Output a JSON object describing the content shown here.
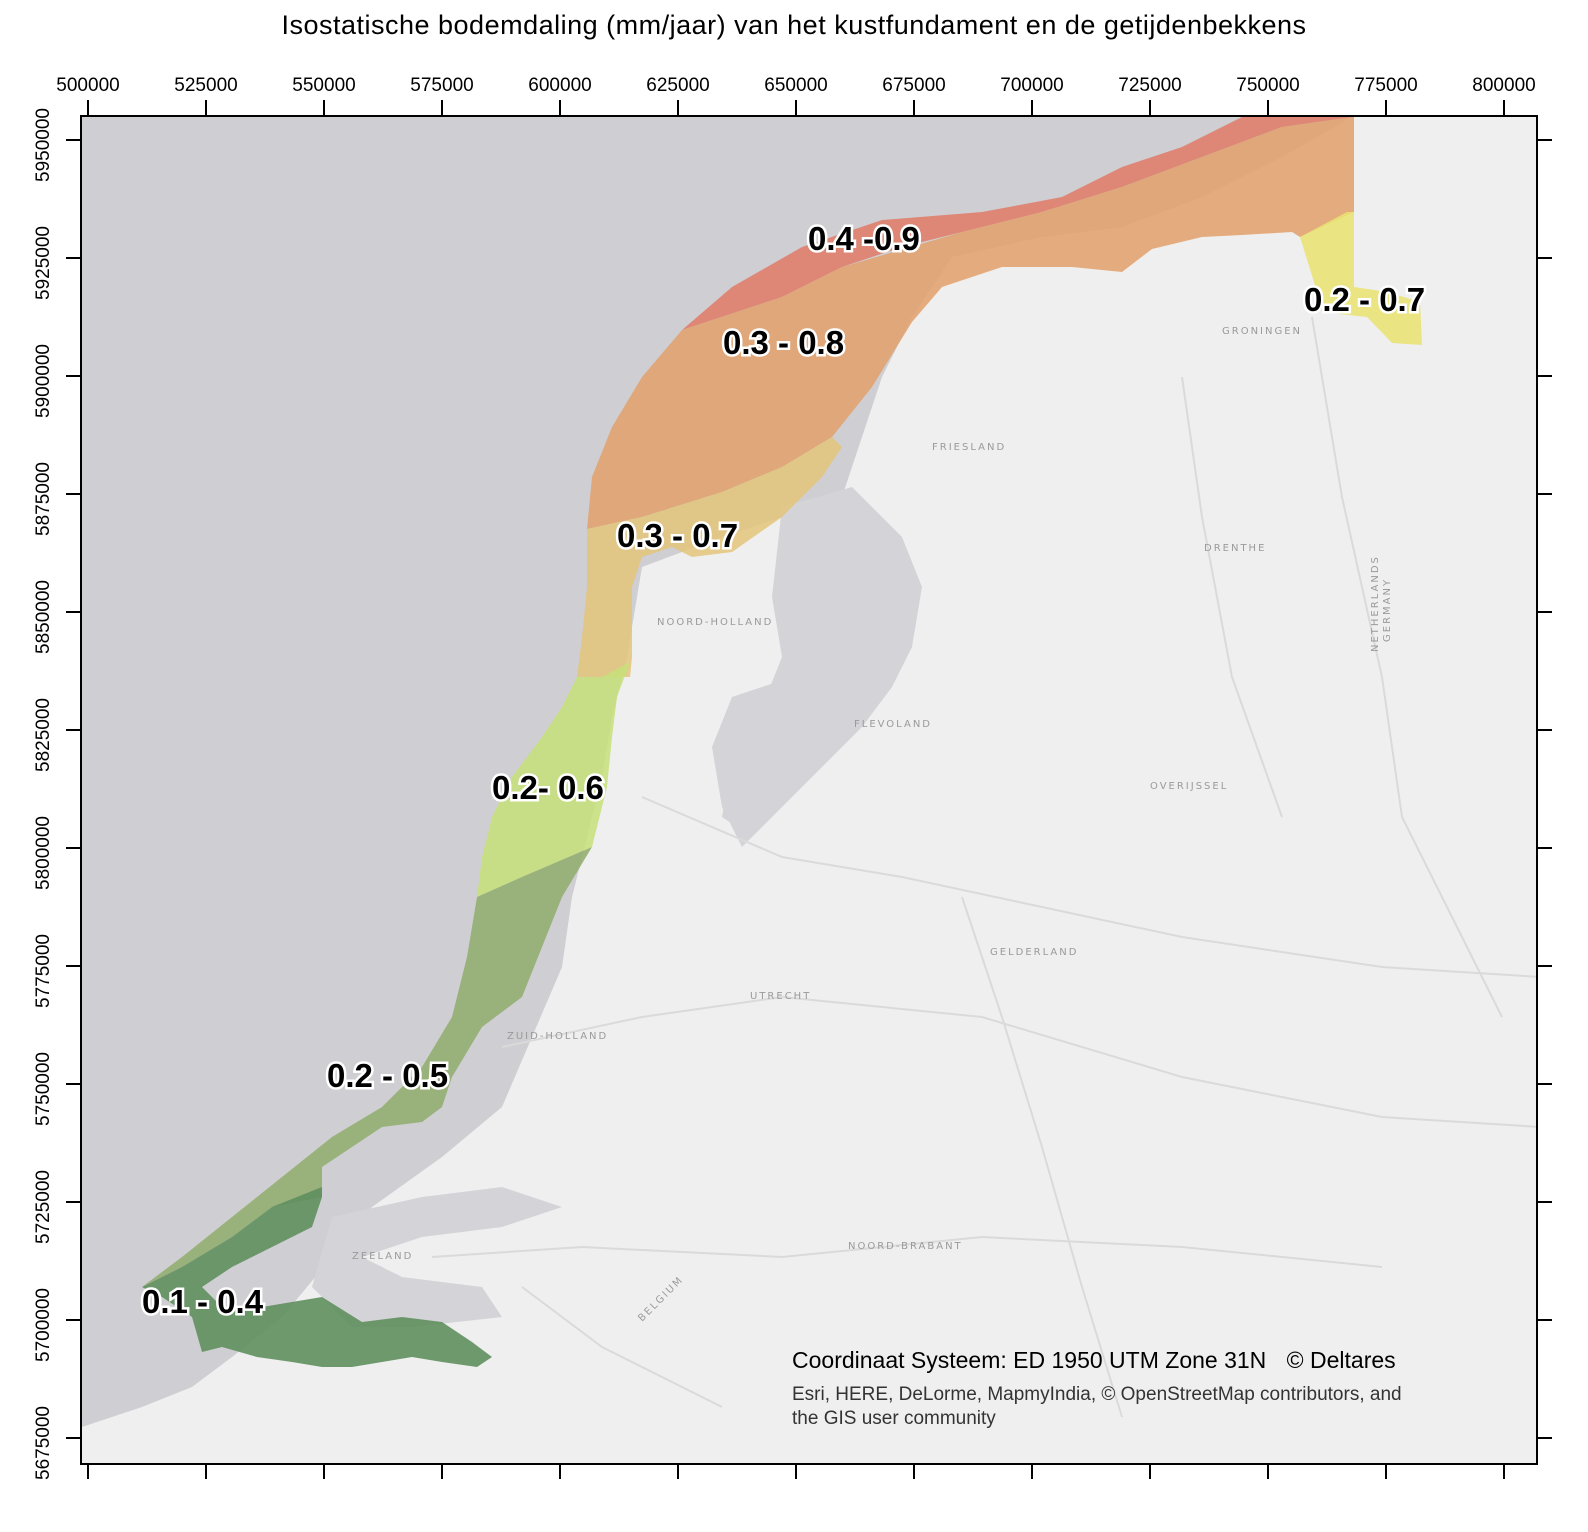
{
  "title": "Isostatische bodemdaling (mm/jaar) van het kustfundament en de getijdenbekkens",
  "x_ticks": [
    "500000",
    "525000",
    "550000",
    "575000",
    "600000",
    "625000",
    "650000",
    "675000",
    "700000",
    "725000",
    "750000",
    "775000",
    "800000"
  ],
  "y_ticks": [
    "5950000",
    "5925000",
    "5900000",
    "5875000",
    "5850000",
    "5825000",
    "5800000",
    "5775000",
    "5750000",
    "5725000",
    "5700000",
    "5675000"
  ],
  "zones": [
    {
      "label": "0.4 -0.9",
      "color": "#e07a66"
    },
    {
      "label": "0.3 - 0.8",
      "color": "#e2a06a"
    },
    {
      "label": "0.2 - 0.7",
      "color": "#e9e36e"
    },
    {
      "label": "0.3 - 0.7",
      "color": "#e3c57a"
    },
    {
      "label": "0.2- 0.6",
      "color": "#c6e079"
    },
    {
      "label": "0.2 - 0.5",
      "color": "#8fab6a"
    },
    {
      "label": "0.1 - 0.4",
      "color": "#5f8f5e"
    }
  ],
  "provinces": [
    "GRONINGEN",
    "FRIESLAND",
    "DRENTHE",
    "NOORD-HOLLAND",
    "FLEVOLAND",
    "OVERIJSSEL",
    "GELDERLAND",
    "UTRECHT",
    "ZUID-HOLLAND",
    "ZEELAND",
    "NOORD-BRABANT",
    "NETHERLANDS",
    "GERMANY",
    "BELGIUM"
  ],
  "coordinate_system": "Coordinaat Systeem: ED 1950 UTM Zone 31N",
  "copyright": "© Deltares",
  "attribution_line1": "Esri, HERE, DeLorme, MapmyIndia, © OpenStreetMap contributors, and",
  "attribution_line2": "the GIS user community",
  "colors": {
    "sea": "#cfcfd3",
    "land": "#efefef",
    "water": "#d2d2d6"
  }
}
